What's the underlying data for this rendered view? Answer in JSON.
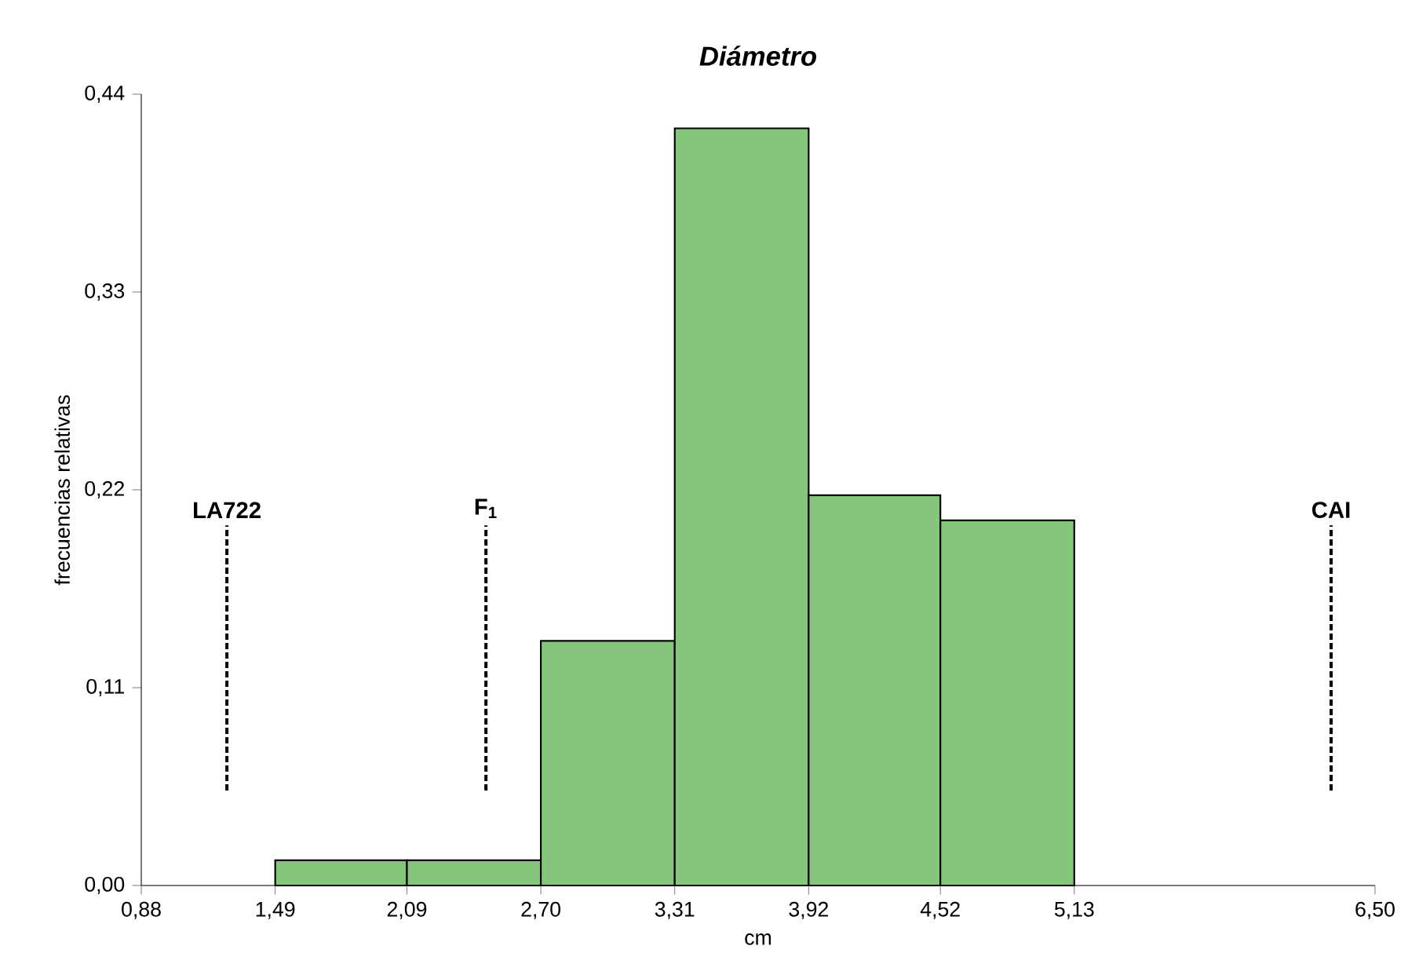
{
  "chart_data": {
    "type": "histogram",
    "title": "*Diámetro*",
    "xlabel": "cm",
    "ylabel": "frecuencias relativas",
    "bins": [
      1.49,
      2.09,
      2.7,
      3.31,
      3.92,
      4.52,
      5.13
    ],
    "values": [
      0.014,
      0.014,
      0.136,
      0.421,
      0.217,
      0.203
    ],
    "color": "#86c67c",
    "xlim": [
      0.88,
      6.5
    ],
    "ylim": [
      0,
      0.44
    ],
    "xticks": [
      {
        "value": 0.88,
        "label": "0,88"
      },
      {
        "value": 1.49,
        "label": "1,49"
      },
      {
        "value": 2.09,
        "label": "2,09"
      },
      {
        "value": 2.7,
        "label": "2,70"
      },
      {
        "value": 3.31,
        "label": "3,31"
      },
      {
        "value": 3.92,
        "label": "3,92"
      },
      {
        "value": 4.52,
        "label": "4,52"
      },
      {
        "value": 5.13,
        "label": "5,13"
      },
      {
        "value": 6.5,
        "label": "6,50"
      }
    ],
    "yticks": [
      {
        "value": 0,
        "label": "0,00"
      },
      {
        "value": 0.11,
        "label": "0,11"
      },
      {
        "value": 0.22,
        "label": "0,22"
      },
      {
        "value": 0.33,
        "label": "0,33"
      },
      {
        "value": 0.44,
        "label": "0,44"
      }
    ],
    "ref_lines": [
      {
        "axis": "x",
        "value": 1.27,
        "label": "**LA722**",
        "line_style": "dashed"
      },
      {
        "axis": "x",
        "value": 2.45,
        "label": "**F$_{1}$**",
        "line_style": "dashed"
      },
      {
        "axis": "x",
        "value": 6.3,
        "label": "**CAI**",
        "line_style": "dashed"
      }
    ],
    "grid": false
  }
}
